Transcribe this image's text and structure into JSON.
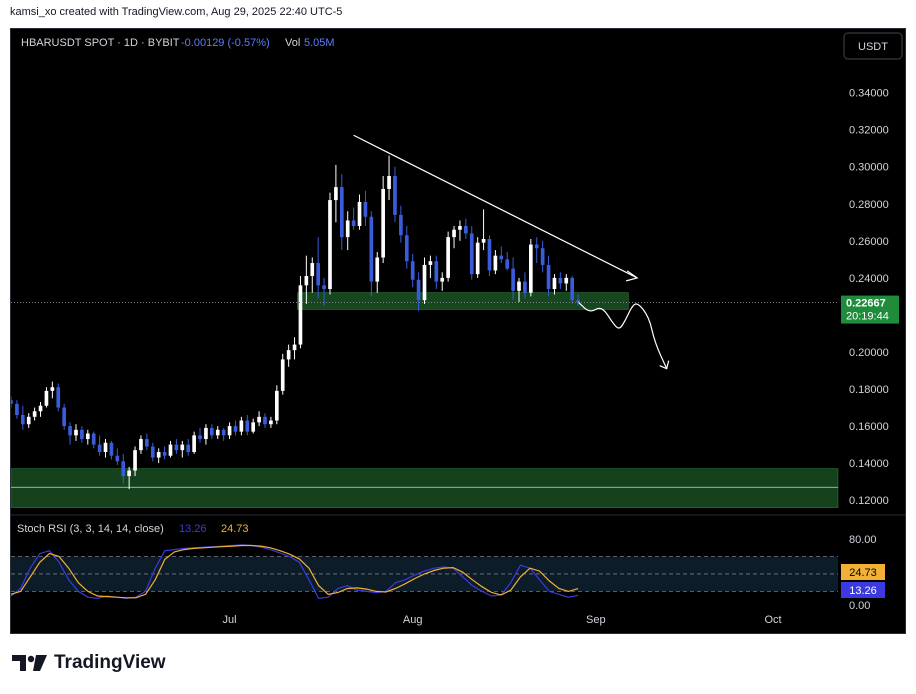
{
  "attribution": "kamsi_xo created with TradingView.com, Aug 29, 2025 22:40 UTC-5",
  "header": {
    "symbol": "HBARUSDT SPOT · 1D · BYBIT",
    "change": "-0.00129 (-0.57%)",
    "vol_label": "Vol",
    "vol_value": "5.05M",
    "currency_button": "USDT"
  },
  "colors": {
    "up": "#ffffff",
    "down": "#3a5cdb",
    "zone": "#1e5f2a",
    "k_line": "#3a3adf",
    "d_line": "#f2b134",
    "price_badge": "#1e8c3a"
  },
  "price_badge": {
    "price": "0.22667",
    "countdown": "20:19:44"
  },
  "rsi": {
    "title": "Stoch RSI (3, 3, 14, 14, close)",
    "k_value": "13.26",
    "d_value": "24.73",
    "levels": [
      "80.00",
      "0.00"
    ]
  },
  "footer": {
    "brand": "TradingView"
  },
  "chart_data": [
    {
      "type": "candlestick",
      "title": "HBARUSDT SPOT · 1D · BYBIT",
      "ylim": [
        0.112,
        0.356
      ],
      "y_ticks": [
        "0.12000",
        "0.14000",
        "0.16000",
        "0.18000",
        "0.20000",
        "0.22000",
        "0.24000",
        "0.26000",
        "0.28000",
        "0.30000",
        "0.32000",
        "0.34000"
      ],
      "x_ticks": [
        {
          "label": "Jul",
          "date": "2025-07-01"
        },
        {
          "label": "Aug",
          "date": "2025-08-01"
        },
        {
          "label": "Sep",
          "date": "2025-09-01"
        },
        {
          "label": "Oct",
          "date": "2025-10-01"
        }
      ],
      "x_range": [
        "2025-05-25",
        "2025-10-12"
      ],
      "ohlc": [
        [
          "2025-05-25",
          0.174,
          0.176,
          0.17,
          0.172
        ],
        [
          "2025-05-26",
          0.172,
          0.174,
          0.164,
          0.166
        ],
        [
          "2025-05-27",
          0.166,
          0.171,
          0.158,
          0.161
        ],
        [
          "2025-05-28",
          0.161,
          0.167,
          0.159,
          0.165
        ],
        [
          "2025-05-29",
          0.165,
          0.17,
          0.163,
          0.168
        ],
        [
          "2025-05-30",
          0.168,
          0.173,
          0.165,
          0.171
        ],
        [
          "2025-05-31",
          0.171,
          0.181,
          0.17,
          0.179
        ],
        [
          "2025-06-01",
          0.179,
          0.184,
          0.175,
          0.181
        ],
        [
          "2025-06-02",
          0.181,
          0.183,
          0.168,
          0.17
        ],
        [
          "2025-06-03",
          0.17,
          0.172,
          0.158,
          0.16
        ],
        [
          "2025-06-04",
          0.16,
          0.162,
          0.15,
          0.155
        ],
        [
          "2025-06-05",
          0.155,
          0.161,
          0.152,
          0.158
        ],
        [
          "2025-06-06",
          0.158,
          0.16,
          0.151,
          0.153
        ],
        [
          "2025-06-07",
          0.153,
          0.158,
          0.15,
          0.156
        ],
        [
          "2025-06-08",
          0.156,
          0.157,
          0.148,
          0.15
        ],
        [
          "2025-06-09",
          0.15,
          0.155,
          0.144,
          0.146
        ],
        [
          "2025-06-10",
          0.146,
          0.153,
          0.143,
          0.151
        ],
        [
          "2025-06-11",
          0.151,
          0.152,
          0.142,
          0.144
        ],
        [
          "2025-06-12",
          0.144,
          0.148,
          0.139,
          0.141
        ],
        [
          "2025-06-13",
          0.141,
          0.145,
          0.129,
          0.133
        ],
        [
          "2025-06-14",
          0.133,
          0.138,
          0.126,
          0.136
        ],
        [
          "2025-06-15",
          0.136,
          0.149,
          0.133,
          0.147
        ],
        [
          "2025-06-16",
          0.147,
          0.155,
          0.145,
          0.153
        ],
        [
          "2025-06-17",
          0.153,
          0.156,
          0.147,
          0.149
        ],
        [
          "2025-06-18",
          0.149,
          0.151,
          0.141,
          0.143
        ],
        [
          "2025-06-19",
          0.143,
          0.148,
          0.14,
          0.146
        ],
        [
          "2025-06-20",
          0.146,
          0.149,
          0.142,
          0.144
        ],
        [
          "2025-06-21",
          0.144,
          0.152,
          0.143,
          0.15
        ],
        [
          "2025-06-22",
          0.15,
          0.153,
          0.145,
          0.147
        ],
        [
          "2025-06-23",
          0.147,
          0.152,
          0.143,
          0.15
        ],
        [
          "2025-06-24",
          0.15,
          0.153,
          0.144,
          0.146
        ],
        [
          "2025-06-25",
          0.146,
          0.157,
          0.145,
          0.155
        ],
        [
          "2025-06-26",
          0.155,
          0.159,
          0.151,
          0.153
        ],
        [
          "2025-06-27",
          0.153,
          0.161,
          0.15,
          0.159
        ],
        [
          "2025-06-28",
          0.159,
          0.161,
          0.153,
          0.155
        ],
        [
          "2025-06-29",
          0.155,
          0.16,
          0.153,
          0.158
        ],
        [
          "2025-06-30",
          0.158,
          0.159,
          0.152,
          0.155
        ],
        [
          "2025-07-01",
          0.155,
          0.162,
          0.153,
          0.16
        ],
        [
          "2025-07-02",
          0.16,
          0.163,
          0.155,
          0.157
        ],
        [
          "2025-07-03",
          0.157,
          0.165,
          0.155,
          0.163
        ],
        [
          "2025-07-04",
          0.163,
          0.166,
          0.155,
          0.157
        ],
        [
          "2025-07-05",
          0.157,
          0.164,
          0.156,
          0.162
        ],
        [
          "2025-07-06",
          0.162,
          0.168,
          0.16,
          0.165
        ],
        [
          "2025-07-07",
          0.165,
          0.167,
          0.159,
          0.161
        ],
        [
          "2025-07-08",
          0.161,
          0.165,
          0.159,
          0.163
        ],
        [
          "2025-07-09",
          0.163,
          0.182,
          0.161,
          0.179
        ],
        [
          "2025-07-10",
          0.179,
          0.199,
          0.177,
          0.196
        ],
        [
          "2025-07-11",
          0.196,
          0.204,
          0.192,
          0.201
        ],
        [
          "2025-07-12",
          0.201,
          0.208,
          0.196,
          0.204
        ],
        [
          "2025-07-13",
          0.204,
          0.241,
          0.202,
          0.236
        ],
        [
          "2025-07-14",
          0.236,
          0.252,
          0.226,
          0.241
        ],
        [
          "2025-07-15",
          0.241,
          0.251,
          0.232,
          0.248
        ],
        [
          "2025-07-16",
          0.248,
          0.262,
          0.229,
          0.236
        ],
        [
          "2025-07-17",
          0.236,
          0.24,
          0.225,
          0.234
        ],
        [
          "2025-07-18",
          0.234,
          0.286,
          0.231,
          0.282
        ],
        [
          "2025-07-19",
          0.282,
          0.301,
          0.27,
          0.289
        ],
        [
          "2025-07-20",
          0.289,
          0.296,
          0.255,
          0.262
        ],
        [
          "2025-07-21",
          0.262,
          0.276,
          0.255,
          0.271
        ],
        [
          "2025-07-22",
          0.271,
          0.278,
          0.266,
          0.268
        ],
        [
          "2025-07-23",
          0.268,
          0.285,
          0.266,
          0.281
        ],
        [
          "2025-07-24",
          0.281,
          0.287,
          0.268,
          0.273
        ],
        [
          "2025-07-25",
          0.273,
          0.276,
          0.23,
          0.238
        ],
        [
          "2025-07-26",
          0.238,
          0.254,
          0.232,
          0.251
        ],
        [
          "2025-07-27",
          0.251,
          0.295,
          0.248,
          0.288
        ],
        [
          "2025-07-28",
          0.288,
          0.306,
          0.282,
          0.295
        ],
        [
          "2025-07-29",
          0.295,
          0.3,
          0.27,
          0.274
        ],
        [
          "2025-07-30",
          0.274,
          0.279,
          0.259,
          0.263
        ],
        [
          "2025-07-31",
          0.263,
          0.268,
          0.245,
          0.249
        ],
        [
          "2025-08-01",
          0.249,
          0.253,
          0.235,
          0.239
        ],
        [
          "2025-08-02",
          0.239,
          0.243,
          0.222,
          0.228
        ],
        [
          "2025-08-03",
          0.228,
          0.251,
          0.226,
          0.247
        ],
        [
          "2025-08-04",
          0.247,
          0.252,
          0.24,
          0.249
        ],
        [
          "2025-08-05",
          0.249,
          0.252,
          0.234,
          0.238
        ],
        [
          "2025-08-06",
          0.238,
          0.243,
          0.233,
          0.24
        ],
        [
          "2025-08-07",
          0.24,
          0.265,
          0.238,
          0.262
        ],
        [
          "2025-08-08",
          0.262,
          0.268,
          0.256,
          0.266
        ],
        [
          "2025-08-09",
          0.266,
          0.271,
          0.26,
          0.268
        ],
        [
          "2025-08-10",
          0.268,
          0.272,
          0.261,
          0.264
        ],
        [
          "2025-08-11",
          0.264,
          0.268,
          0.239,
          0.242
        ],
        [
          "2025-08-12",
          0.242,
          0.262,
          0.24,
          0.259
        ],
        [
          "2025-08-13",
          0.259,
          0.277,
          0.255,
          0.261
        ],
        [
          "2025-08-14",
          0.261,
          0.263,
          0.241,
          0.244
        ],
        [
          "2025-08-15",
          0.244,
          0.255,
          0.242,
          0.252
        ],
        [
          "2025-08-16",
          0.252,
          0.257,
          0.248,
          0.25
        ],
        [
          "2025-08-17",
          0.25,
          0.254,
          0.244,
          0.245
        ],
        [
          "2025-08-18",
          0.245,
          0.251,
          0.228,
          0.233
        ],
        [
          "2025-08-19",
          0.233,
          0.24,
          0.227,
          0.238
        ],
        [
          "2025-08-20",
          0.238,
          0.243,
          0.229,
          0.232
        ],
        [
          "2025-08-21",
          0.232,
          0.261,
          0.23,
          0.258
        ],
        [
          "2025-08-22",
          0.258,
          0.262,
          0.248,
          0.256
        ],
        [
          "2025-08-23",
          0.256,
          0.26,
          0.243,
          0.247
        ],
        [
          "2025-08-24",
          0.247,
          0.252,
          0.23,
          0.234
        ],
        [
          "2025-08-25",
          0.234,
          0.242,
          0.231,
          0.24
        ],
        [
          "2025-08-26",
          0.24,
          0.243,
          0.234,
          0.237
        ],
        [
          "2025-08-27",
          0.237,
          0.242,
          0.233,
          0.24
        ],
        [
          "2025-08-28",
          0.24,
          0.241,
          0.226,
          0.228
        ],
        [
          "2025-08-29",
          0.228,
          0.231,
          0.225,
          0.2267
        ]
      ],
      "zones": [
        {
          "from": 0.223,
          "to": 0.232
        },
        {
          "from": 0.116,
          "to": 0.137
        }
      ],
      "horizontal_lines": [
        0.127
      ],
      "last_price": 0.22667,
      "trendline": {
        "start": [
          "2025-07-22",
          0.317
        ],
        "end": [
          "2025-09-08",
          0.24
        ]
      },
      "projection": [
        [
          "2025-08-29",
          0.227
        ],
        [
          "2025-08-31",
          0.221
        ],
        [
          "2025-09-02",
          0.225
        ],
        [
          "2025-09-04",
          0.215
        ],
        [
          "2025-09-05",
          0.212
        ],
        [
          "2025-09-06",
          0.217
        ],
        [
          "2025-09-07",
          0.224
        ],
        [
          "2025-09-08",
          0.227
        ],
        [
          "2025-09-10",
          0.219
        ],
        [
          "2025-09-11",
          0.205
        ],
        [
          "2025-09-13",
          0.191
        ]
      ]
    },
    {
      "type": "line",
      "title": "Stoch RSI (3, 3, 14, 14, close)",
      "ylim": [
        0,
        100
      ],
      "levels": [
        80,
        50,
        20
      ],
      "series": [
        {
          "name": "K",
          "values": [
            12,
            25,
            60,
            85,
            90,
            70,
            40,
            20,
            10,
            8,
            12,
            10,
            8,
            10,
            20,
            60,
            90,
            92,
            94,
            95,
            96,
            97,
            98,
            99,
            100,
            99,
            96,
            92,
            86,
            80,
            70,
            40,
            8,
            10,
            25,
            30,
            22,
            20,
            18,
            20,
            35,
            40,
            48,
            55,
            60,
            62,
            60,
            45,
            30,
            20,
            12,
            14,
            35,
            65,
            60,
            40,
            20,
            15,
            10,
            13.26
          ]
        },
        {
          "name": "D",
          "values": [
            15,
            20,
            45,
            70,
            85,
            80,
            60,
            35,
            20,
            12,
            11,
            10,
            9,
            9,
            15,
            40,
            75,
            88,
            92,
            94,
            95,
            96,
            97,
            98,
            99,
            99,
            98,
            95,
            90,
            84,
            76,
            60,
            30,
            15,
            18,
            25,
            26,
            24,
            20,
            19,
            25,
            33,
            42,
            50,
            56,
            60,
            61,
            53,
            40,
            28,
            18,
            14,
            22,
            45,
            60,
            55,
            38,
            25,
            20,
            24.73
          ]
        }
      ]
    }
  ]
}
